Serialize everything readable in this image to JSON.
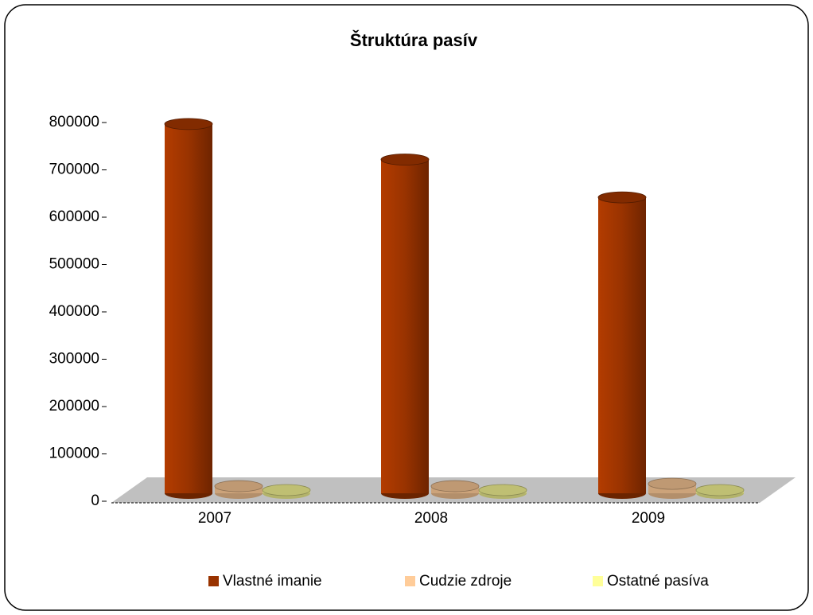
{
  "chart_data": {
    "type": "bar",
    "title": "Štruktúra pasív",
    "categories": [
      "2007",
      "2008",
      "2009"
    ],
    "series": [
      {
        "name": "Vlastné imanie",
        "color": "#993300",
        "values": [
          780000,
          705000,
          625000
        ]
      },
      {
        "name": "Cudzie zdroje",
        "color": "#FFCC99",
        "values": [
          15000,
          15000,
          20000
        ]
      },
      {
        "name": "Ostatné pasíva",
        "color": "#FFFF99",
        "values": [
          5000,
          5000,
          5000
        ]
      }
    ],
    "ylim": [
      0,
      800000
    ],
    "yticks": [
      0,
      100000,
      200000,
      300000,
      400000,
      500000,
      600000,
      700000,
      800000
    ],
    "legend": "bottom"
  }
}
